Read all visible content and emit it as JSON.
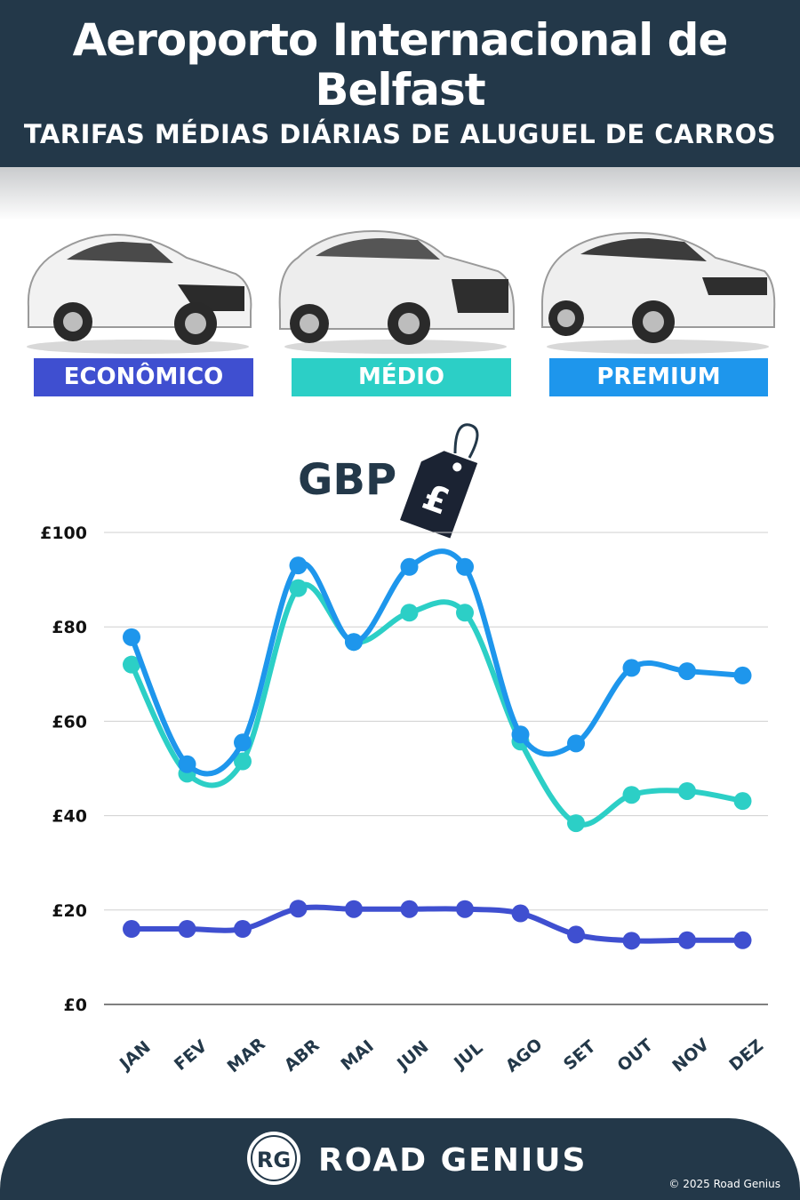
{
  "header": {
    "title_line1": "Aeroporto Internacional de",
    "title_line2": "Belfast",
    "subtitle": "TARIFAS MÉDIAS DIÁRIAS DE ALUGUEL DE CARROS"
  },
  "categories": [
    {
      "label": "ECONÔMICO",
      "color": "#3f4fd0"
    },
    {
      "label": "MÉDIO",
      "color": "#2ccfc6"
    },
    {
      "label": "PREMIUM",
      "color": "#1e96ec"
    }
  ],
  "currency_label": "GBP",
  "currency_symbol": "£",
  "chart_data": {
    "type": "line",
    "categories": [
      "JAN",
      "FEV",
      "MAR",
      "ABR",
      "MAI",
      "JUN",
      "JUL",
      "AGO",
      "SET",
      "OUT",
      "NOV",
      "DEZ"
    ],
    "series": [
      {
        "name": "ECONÔMICO",
        "color": "#3f4fd0",
        "values": [
          16.0,
          16.0,
          16.0,
          20.3,
          20.2,
          20.2,
          20.2,
          19.3,
          14.8,
          13.5,
          13.6,
          13.6
        ]
      },
      {
        "name": "MÉDIO",
        "color": "#2ccfc6",
        "values": [
          72.0,
          48.9,
          51.5,
          88.2,
          76.8,
          83.0,
          83.0,
          55.7,
          38.4,
          44.4,
          45.2,
          43.1
        ]
      },
      {
        "name": "PREMIUM",
        "color": "#1e96ec",
        "values": [
          77.8,
          50.9,
          55.5,
          93.0,
          76.8,
          92.7,
          92.7,
          57.2,
          55.3,
          71.3,
          70.6,
          69.7
        ]
      }
    ],
    "y_ticks": [
      "£0",
      "£20",
      "£40",
      "£60",
      "£80",
      "£100"
    ],
    "ylim": [
      0,
      100
    ],
    "grid": true
  },
  "footer": {
    "logo_text": "RG",
    "brand": "ROAD GENIUS",
    "copyright": "© 2025 Road Genius"
  }
}
